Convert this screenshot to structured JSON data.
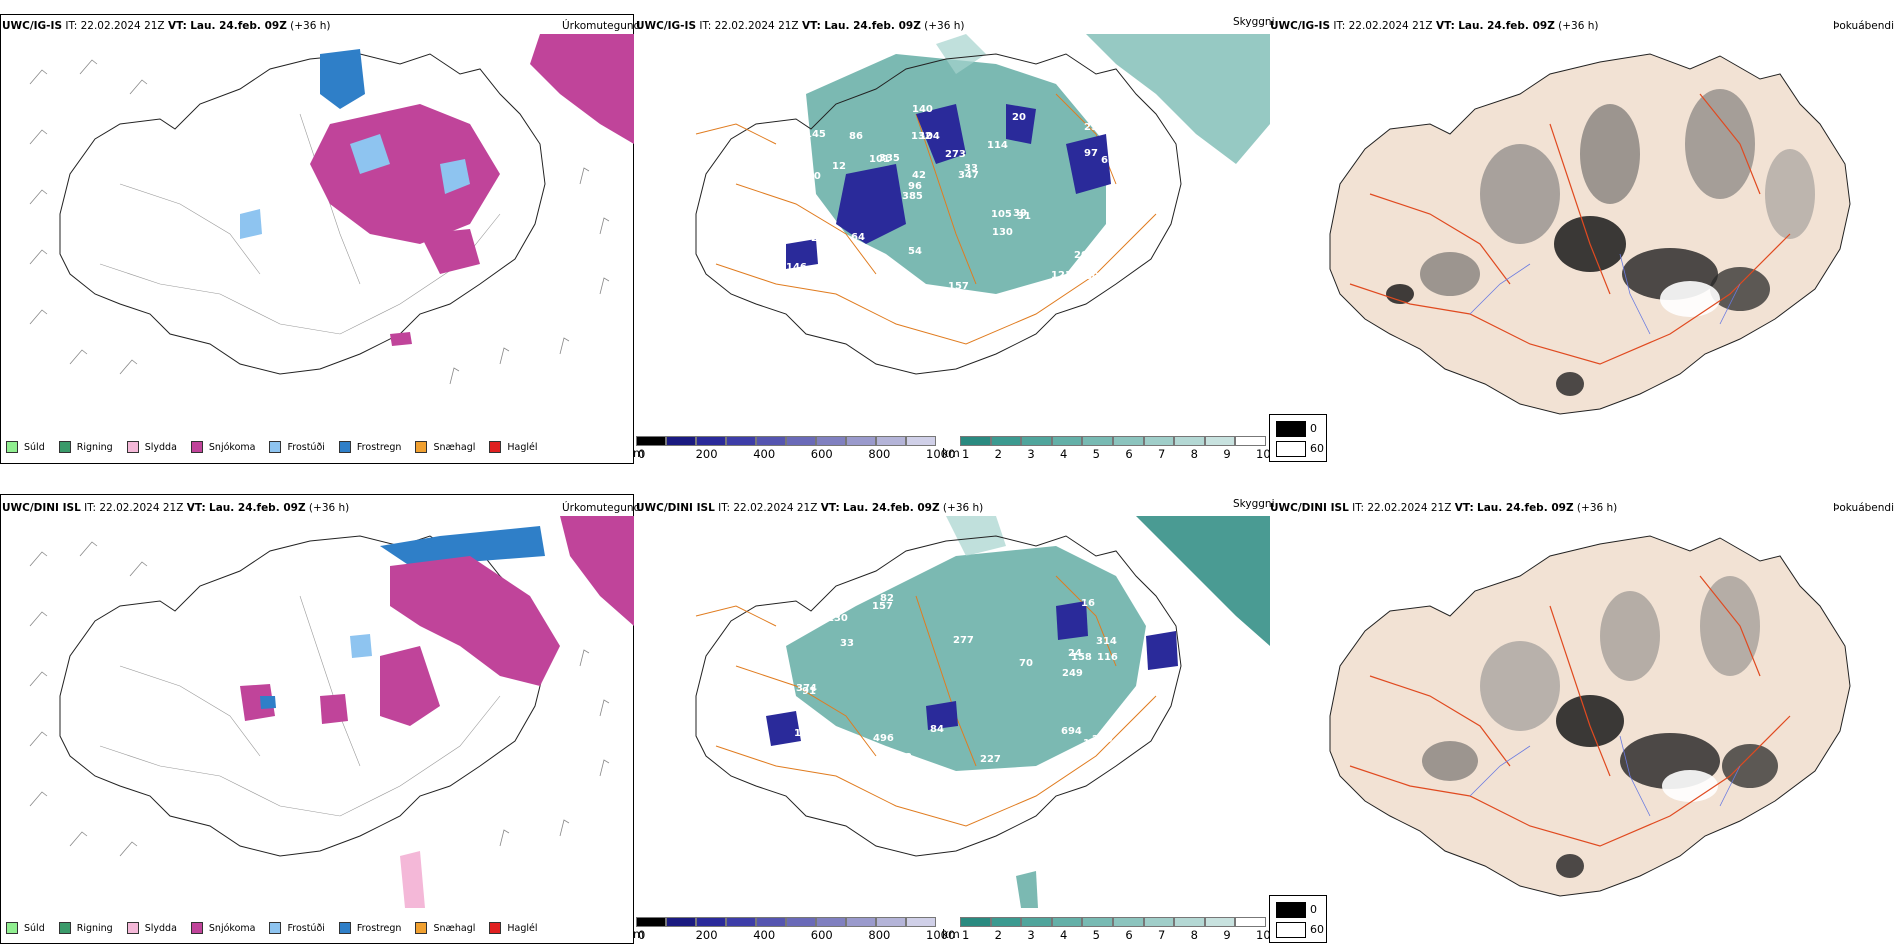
{
  "rows": [
    {
      "model": "UWC/IG-IS",
      "it_label": "IT:",
      "it_value": "22.02.2024 21Z",
      "vt_label": "VT:",
      "vt_value": "Lau. 24.feb. 09Z",
      "lead": "(+36 h)"
    },
    {
      "model": "UWC/DINI ISL",
      "it_label": "IT:",
      "it_value": "22.02.2024 21Z",
      "vt_label": "VT:",
      "vt_value": "Lau. 24.feb. 09Z",
      "lead": "(+36 h)"
    }
  ],
  "panel_titles": {
    "precip_type": "Úrkomutegund",
    "cloud": "Skyggni",
    "fog": "Þokuábendi"
  },
  "precip_legend": [
    {
      "label": "Súld",
      "color": "#90ee90"
    },
    {
      "label": "Rigning",
      "color": "#3a9a6a"
    },
    {
      "label": "Slydda",
      "color": "#f4b8d8"
    },
    {
      "label": "Snjókoma",
      "color": "#c0449a"
    },
    {
      "label": "Frostúði",
      "color": "#8ec4f0"
    },
    {
      "label": "Frostregn",
      "color": "#2f7fc8"
    },
    {
      "label": "Snæhagl",
      "color": "#f0a030"
    },
    {
      "label": "Haglél",
      "color": "#e02020"
    }
  ],
  "height_bar": {
    "unit": "m",
    "ticks": [
      "0",
      "200",
      "400",
      "600",
      "800",
      "1000"
    ],
    "colors": [
      "#000000",
      "#1a1a80",
      "#2a2a9a",
      "#3d3da8",
      "#5555b0",
      "#6a6ab8",
      "#8080c0",
      "#9a9acc",
      "#b4b4d8",
      "#d0d0e8"
    ]
  },
  "vis_bar": {
    "unit": "km",
    "ticks": [
      "1",
      "2",
      "3",
      "4",
      "5",
      "6",
      "7",
      "8",
      "9",
      "10"
    ],
    "colors": [
      "#2a8a80",
      "#3c9a90",
      "#50a59c",
      "#64b0a8",
      "#78bab3",
      "#8cc4be",
      "#a0cec9",
      "#b4d8d4",
      "#c8e2df",
      "#ffffff"
    ]
  },
  "fog_legend": {
    "items": [
      {
        "value": "0",
        "color": "#000000"
      },
      {
        "value": "60",
        "color": "#ffffff"
      }
    ]
  },
  "cloud_labels_top": [
    "180",
    "200",
    "256",
    "385",
    "114",
    "130",
    "132",
    "273",
    "233",
    "335",
    "146",
    "161",
    "104",
    "33",
    "31",
    "145",
    "140",
    "139",
    "105",
    "97",
    "96",
    "54",
    "42",
    "86",
    "20",
    "64",
    "121",
    "205",
    "39",
    "157",
    "101",
    "12",
    "130",
    "148",
    "65",
    "347",
    "123"
  ],
  "cloud_labels_bottom": [
    "694",
    "314",
    "219",
    "277",
    "420",
    "82",
    "24",
    "496",
    "16",
    "33",
    "116",
    "265",
    "249",
    "200",
    "119",
    "130",
    "168",
    "157",
    "84",
    "158",
    "374",
    "91",
    "227",
    "70",
    "12"
  ]
}
